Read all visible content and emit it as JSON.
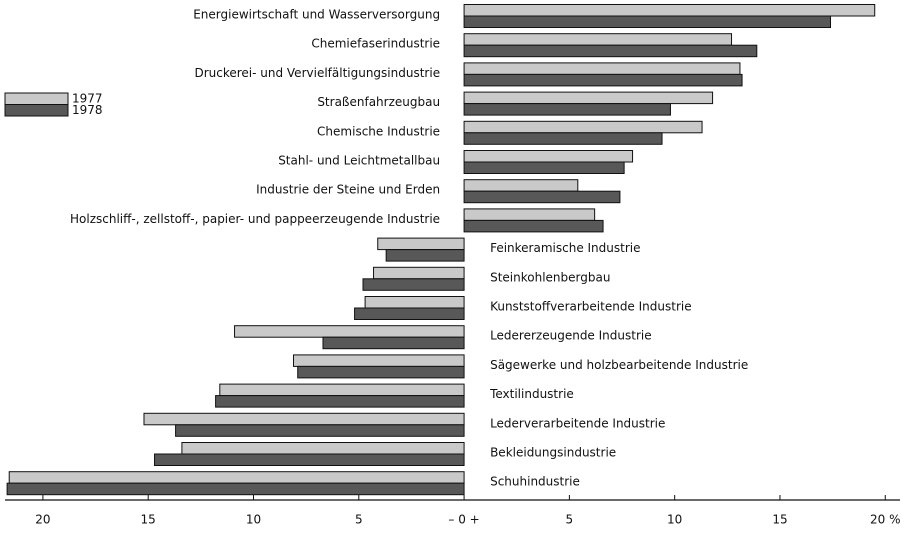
{
  "chart_data": {
    "type": "bar",
    "orientation": "horizontal",
    "categories": [
      "Energiewirtschaft und Wasserversorgung",
      "Chemiefaserindustrie",
      "Druckerei- und Vervielfältigungsindustrie",
      "Straßenfahrzeugbau",
      "Chemische Industrie",
      "Stahl- und Leichtmetallbau",
      "Industrie der Steine und Erden",
      "Holzschliff-, zellstoff-, papier- und pappeerzeugende Industrie",
      "Feinkeramische Industrie",
      "Steinkohlenbergbau",
      "Kunststoffverarbeitende Industrie",
      "Ledererzeugende Industrie",
      "Sägewerke und holzbearbeitende Industrie",
      "Textilindustrie",
      "Lederverarbeitende Industrie",
      "Bekleidungsindustrie",
      "Schuhindustrie"
    ],
    "series": [
      {
        "name": "1977",
        "color": "#c9c9c9",
        "values": [
          19.5,
          12.7,
          13.1,
          11.8,
          11.3,
          8.0,
          5.4,
          6.2,
          -4.1,
          -4.3,
          -4.7,
          -10.9,
          -8.1,
          -11.6,
          -15.2,
          -13.4,
          -21.6
        ]
      },
      {
        "name": "1978",
        "color": "#585858",
        "values": [
          17.4,
          13.9,
          13.2,
          9.8,
          9.4,
          7.6,
          7.4,
          6.6,
          -3.7,
          -4.8,
          -5.2,
          -6.7,
          -7.9,
          -11.8,
          -13.7,
          -14.7,
          -21.7
        ]
      }
    ],
    "xlim": [
      -21.8,
      20.7
    ],
    "xticks": [
      {
        "value": -20,
        "label": "20"
      },
      {
        "value": -15,
        "label": "15"
      },
      {
        "value": -10,
        "label": "10"
      },
      {
        "value": -5,
        "label": "5"
      },
      {
        "value": 0,
        "label": "– 0 +"
      },
      5,
      10,
      15,
      {
        "value": 20,
        "label": "20 %"
      }
    ],
    "legend": "upper left"
  }
}
